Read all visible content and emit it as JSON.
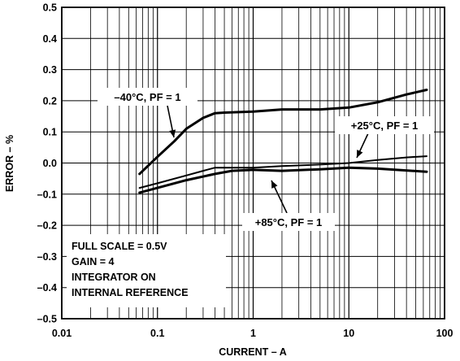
{
  "chart_data": {
    "type": "line",
    "xscale": "log",
    "xlabel": "CURRENT – A",
    "ylabel": "ERROR – %",
    "xlim": [
      0.01,
      100
    ],
    "ylim": [
      -0.5,
      0.5
    ],
    "grid": true,
    "x_ticks": [
      {
        "value": 0.01,
        "label": "0.01"
      },
      {
        "value": 0.1,
        "label": "0.1"
      },
      {
        "value": 1,
        "label": "1"
      },
      {
        "value": 10,
        "label": "10"
      },
      {
        "value": 100,
        "label": "100"
      }
    ],
    "y_ticks": [
      {
        "value": 0.5,
        "label": "0.5"
      },
      {
        "value": 0.4,
        "label": "0.4"
      },
      {
        "value": 0.3,
        "label": "0.3"
      },
      {
        "value": 0.2,
        "label": "0.2"
      },
      {
        "value": 0.1,
        "label": "0.1"
      },
      {
        "value": 0.0,
        "label": "0.0"
      },
      {
        "value": -0.1,
        "label": "–0.1"
      },
      {
        "value": -0.2,
        "label": "–0.2"
      },
      {
        "value": -0.3,
        "label": "–0.3"
      },
      {
        "value": -0.4,
        "label": "–0.4"
      },
      {
        "value": -0.5,
        "label": "–0.5"
      }
    ],
    "series": [
      {
        "name": "–40°C, PF = 1",
        "x": [
          0.065,
          0.1,
          0.15,
          0.2,
          0.3,
          0.4,
          0.5,
          1,
          2,
          5,
          10,
          20,
          40,
          65
        ],
        "y": [
          -0.035,
          0.02,
          0.07,
          0.11,
          0.145,
          0.16,
          0.162,
          0.165,
          0.172,
          0.172,
          0.178,
          0.195,
          0.22,
          0.235
        ]
      },
      {
        "name": "+25°C, PF = 1",
        "x": [
          0.065,
          0.1,
          0.2,
          0.3,
          0.4,
          0.5,
          1,
          2,
          5,
          10,
          20,
          40,
          65
        ],
        "y": [
          -0.08,
          -0.065,
          -0.04,
          -0.025,
          -0.015,
          -0.015,
          -0.015,
          -0.01,
          -0.005,
          0.0,
          0.01,
          0.018,
          0.022
        ]
      },
      {
        "name": "+85°C, PF = 1",
        "x": [
          0.065,
          0.1,
          0.2,
          0.4,
          0.6,
          1,
          2,
          5,
          10,
          20,
          65
        ],
        "y": [
          -0.095,
          -0.08,
          -0.055,
          -0.035,
          -0.025,
          -0.022,
          -0.025,
          -0.02,
          -0.015,
          -0.018,
          -0.028
        ]
      }
    ],
    "annotations": [
      {
        "text": "–40°C, PF = 1",
        "series": 0
      },
      {
        "text": "+25°C, PF = 1",
        "series": 1
      },
      {
        "text": "+85°C, PF = 1",
        "series": 2
      }
    ],
    "note_lines": [
      "FULL SCALE = 0.5V",
      "GAIN = 4",
      "INTEGRATOR ON",
      "INTERNAL REFERENCE"
    ]
  }
}
